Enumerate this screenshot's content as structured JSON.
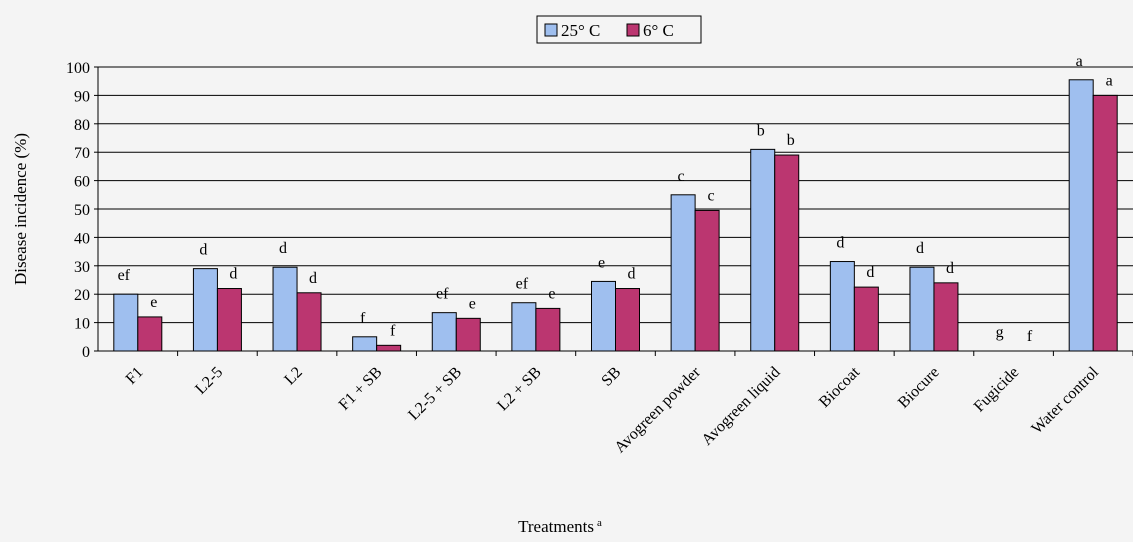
{
  "chart_data": {
    "type": "bar",
    "title": "",
    "xlabel": "Treatments",
    "xlabel_superscript": "a",
    "ylabel": "Disease incidence (%)",
    "ylim": [
      0,
      100
    ],
    "yticks": [
      0,
      10,
      20,
      30,
      40,
      50,
      60,
      70,
      80,
      90,
      100
    ],
    "grid": true,
    "legend_position": "top-center",
    "categories": [
      "F1",
      "L2-5",
      "L2",
      "F1 + SB",
      "L2-5 + SB",
      "L2 + SB",
      "SB",
      "Avogreen powder",
      "Avogreen liquid",
      "Biocoat",
      "Biocure",
      "Fugicide",
      "Water control"
    ],
    "series": [
      {
        "name": "25° C",
        "color": "#9fbfef",
        "values": [
          20,
          29,
          29.5,
          5,
          13.5,
          17,
          24.5,
          55,
          71,
          31.5,
          29.5,
          0,
          95.5
        ],
        "labels": [
          "ef",
          "d",
          "d",
          "f",
          "ef",
          "ef",
          "e",
          "c",
          "b",
          "d",
          "d",
          "g",
          "a"
        ]
      },
      {
        "name": "6° C",
        "color": "#bb3670",
        "values": [
          12,
          22,
          20.5,
          2,
          11.5,
          15,
          22,
          49.5,
          69,
          22.5,
          24,
          0,
          90
        ],
        "labels": [
          "e",
          "d",
          "d",
          "f",
          "e",
          "e",
          "d",
          "c",
          "b",
          "d",
          "d",
          "f",
          "a"
        ]
      }
    ]
  }
}
